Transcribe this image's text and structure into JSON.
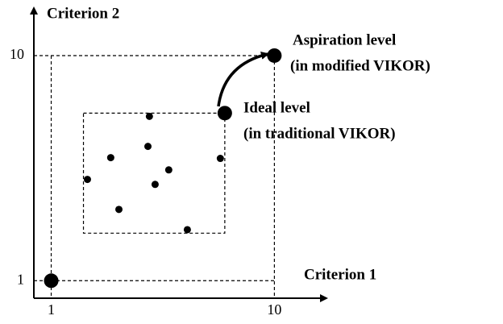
{
  "chart_data": {
    "type": "scatter",
    "x_label": "Criterion 1",
    "y_label": "Criterion 2",
    "xlim": [
      0.3,
      12.1
    ],
    "ylim": [
      0.3,
      11.9
    ],
    "xticks": [
      1,
      10
    ],
    "yticks": [
      1,
      10
    ],
    "points": {
      "x": [
        4.96,
        3.4,
        4.9,
        5.74,
        2.46,
        5.19,
        3.73,
        6.49,
        7.82
      ],
      "y": [
        7.57,
        5.92,
        6.37,
        5.43,
        5.05,
        4.85,
        3.85,
        3.04,
        5.89
      ]
    },
    "highlights": {
      "x": [
        1,
        8,
        10
      ],
      "y": [
        1,
        7.7,
        10
      ]
    },
    "ideal_box": {
      "xlim": [
        2.3,
        8.0
      ],
      "ylim": [
        2.9,
        7.7
      ]
    },
    "annotations": [
      "Aspiration level",
      "(in modified VIKOR)",
      "Ideal level",
      "(in traditional VIKOR)"
    ],
    "color": "#000000"
  }
}
